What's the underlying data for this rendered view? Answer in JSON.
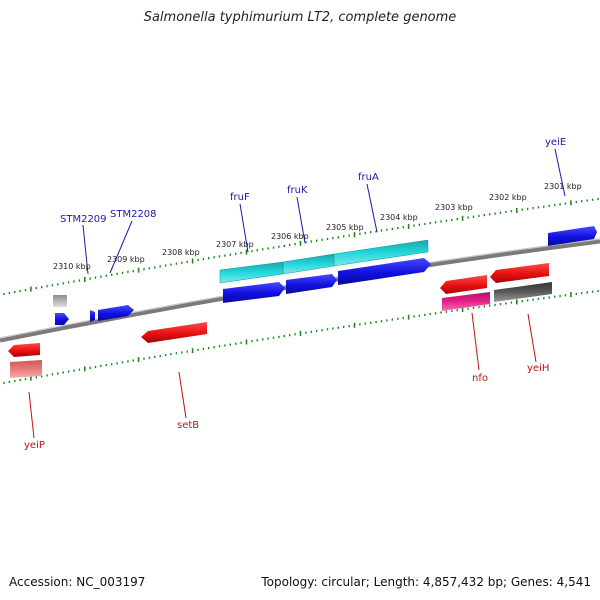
{
  "title": "Salmonella typhimurium LT2, complete genome",
  "footer": {
    "accession": "Accession: NC_003197",
    "topology": "Topology: circular; Length: 4,857,432 bp; Genes: 4,541"
  },
  "colors": {
    "backbone": "#888888",
    "tick": "#1a8a1a",
    "forward_label": "#1a1aa8",
    "reverse_label": "#c01010",
    "blue": "#1010e0",
    "cyan": "#12c8cc",
    "red": "#e81010",
    "pink": "#e8208a",
    "grey": "#555555",
    "light_grey": "#aaaaaa",
    "light_red": "#e87a7a"
  },
  "kbp_labels": [
    "2301 kbp",
    "2302 kbp",
    "2303 kbp",
    "2304 kbp",
    "2305 kbp",
    "2306 kbp",
    "2307 kbp",
    "2308 kbp",
    "2309 kbp",
    "2310 kbp"
  ],
  "forward_gene_labels": [
    "yeiE",
    "fruA",
    "fruK",
    "fruF",
    "STM2208",
    "STM2209"
  ],
  "reverse_gene_labels": [
    "nfo",
    "yeiH",
    "setB",
    "yeiP"
  ]
}
